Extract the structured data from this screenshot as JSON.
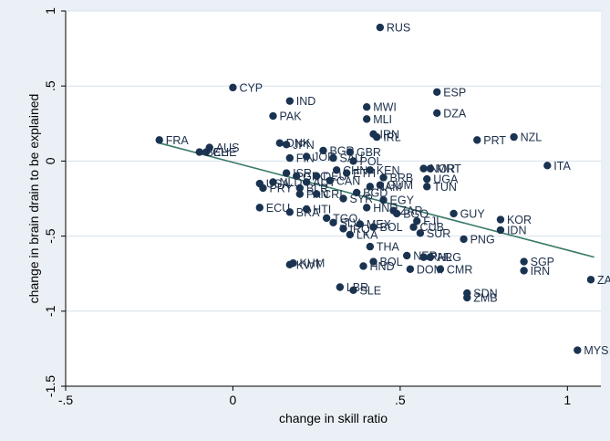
{
  "chart_data": {
    "type": "scatter",
    "xlabel": "change in skill ratio",
    "ylabel": "change in brain drain to be explained",
    "xlim": [
      -0.5,
      1.1
    ],
    "ylim": [
      -1.5,
      1.0
    ],
    "xticks": [
      -0.5,
      0,
      0.5,
      1
    ],
    "xtick_labels": [
      "-.5",
      "0",
      ".5",
      "1"
    ],
    "yticks": [
      1,
      0.5,
      0,
      -0.5,
      -1,
      -1.5
    ],
    "ytick_labels": [
      "1",
      ".5",
      "0",
      "-.5",
      "-1",
      "-1.5"
    ],
    "grid": true,
    "legend": "none",
    "colors": {
      "point": "#1a3350",
      "fit_line": "#3a7a6a",
      "grid": "#d6e0ea",
      "plot_bg": "#ffffff",
      "outer_bg": "#eaf0f5"
    },
    "fit_line": {
      "x": [
        -0.22,
        1.08
      ],
      "y": [
        0.12,
        -0.64
      ]
    },
    "points": [
      {
        "label": "RUS",
        "x": 0.44,
        "y": 0.89
      },
      {
        "label": "CYP",
        "x": 0.0,
        "y": 0.49
      },
      {
        "label": "ESP",
        "x": 0.61,
        "y": 0.46
      },
      {
        "label": "IND",
        "x": 0.17,
        "y": 0.4
      },
      {
        "label": "MWI",
        "x": 0.4,
        "y": 0.36
      },
      {
        "label": "DZA",
        "x": 0.61,
        "y": 0.32
      },
      {
        "label": "PAK",
        "x": 0.12,
        "y": 0.3
      },
      {
        "label": "MLI",
        "x": 0.4,
        "y": 0.28
      },
      {
        "label": "IRN",
        "x": 0.42,
        "y": 0.18
      },
      {
        "label": "IRL",
        "x": 0.43,
        "y": 0.16
      },
      {
        "label": "PRT",
        "x": 0.73,
        "y": 0.14
      },
      {
        "label": "NZL",
        "x": 0.84,
        "y": 0.16
      },
      {
        "label": "FRA",
        "x": -0.22,
        "y": 0.14
      },
      {
        "label": "DNK",
        "x": 0.14,
        "y": 0.12
      },
      {
        "label": "JPN",
        "x": 0.16,
        "y": 0.11
      },
      {
        "label": "AUS",
        "x": -0.07,
        "y": 0.09
      },
      {
        "label": "CHE",
        "x": -0.08,
        "y": 0.06
      },
      {
        "label": "BEL",
        "x": -0.1,
        "y": 0.06
      },
      {
        "label": "BGR",
        "x": 0.27,
        "y": 0.07
      },
      {
        "label": "GBR",
        "x": 0.35,
        "y": 0.06
      },
      {
        "label": "FIN",
        "x": 0.17,
        "y": 0.02
      },
      {
        "label": "JOR",
        "x": 0.22,
        "y": 0.03
      },
      {
        "label": "SAU",
        "x": 0.3,
        "y": 0.02
      },
      {
        "label": "POL",
        "x": 0.36,
        "y": 0.0
      },
      {
        "label": "ITA",
        "x": 0.94,
        "y": -0.03
      },
      {
        "label": "MRT",
        "x": 0.59,
        "y": -0.05
      },
      {
        "label": "NOR",
        "x": 0.57,
        "y": -0.05
      },
      {
        "label": "CHN",
        "x": 0.31,
        "y": -0.06
      },
      {
        "label": "KEN",
        "x": 0.41,
        "y": -0.06
      },
      {
        "label": "ISR",
        "x": 0.16,
        "y": -0.08
      },
      {
        "label": "ETH",
        "x": 0.34,
        "y": -0.08
      },
      {
        "label": "GRC",
        "x": 0.19,
        "y": -0.1
      },
      {
        "label": "DEU",
        "x": 0.25,
        "y": -0.1
      },
      {
        "label": "BRB",
        "x": 0.45,
        "y": -0.11
      },
      {
        "label": "UGA",
        "x": 0.58,
        "y": -0.12
      },
      {
        "label": "NLD",
        "x": 0.12,
        "y": -0.14
      },
      {
        "label": "AUT",
        "x": 0.22,
        "y": -0.14
      },
      {
        "label": "CAN",
        "x": 0.29,
        "y": -0.13
      },
      {
        "label": "GUM",
        "x": 0.44,
        "y": -0.16
      },
      {
        "label": "TUN",
        "x": 0.58,
        "y": -0.17
      },
      {
        "label": "USA",
        "x": 0.08,
        "y": -0.15
      },
      {
        "label": "PRY",
        "x": 0.09,
        "y": -0.18
      },
      {
        "label": "BLR",
        "x": 0.2,
        "y": -0.18
      },
      {
        "label": "NAM",
        "x": 0.41,
        "y": -0.17
      },
      {
        "label": "PAN",
        "x": 0.2,
        "y": -0.22
      },
      {
        "label": "CRI",
        "x": 0.25,
        "y": -0.22
      },
      {
        "label": "BGD",
        "x": 0.37,
        "y": -0.21
      },
      {
        "label": "SYR",
        "x": 0.33,
        "y": -0.25
      },
      {
        "label": "EGY",
        "x": 0.45,
        "y": -0.26
      },
      {
        "label": "ECU",
        "x": 0.08,
        "y": -0.31
      },
      {
        "label": "HTI",
        "x": 0.22,
        "y": -0.32
      },
      {
        "label": "BRA",
        "x": 0.17,
        "y": -0.34
      },
      {
        "label": "HND",
        "x": 0.4,
        "y": -0.31
      },
      {
        "label": "ZAR",
        "x": 0.48,
        "y": -0.33
      },
      {
        "label": "BGO",
        "x": 0.49,
        "y": -0.35
      },
      {
        "label": "GUY",
        "x": 0.66,
        "y": -0.35
      },
      {
        "label": "KOR",
        "x": 0.8,
        "y": -0.39
      },
      {
        "label": "TGO",
        "x": 0.28,
        "y": -0.38
      },
      {
        "label": "SLV",
        "x": 0.3,
        "y": -0.41
      },
      {
        "label": "FJI",
        "x": 0.55,
        "y": -0.4
      },
      {
        "label": "IRQ",
        "x": 0.33,
        "y": -0.45
      },
      {
        "label": "MEX",
        "x": 0.38,
        "y": -0.42
      },
      {
        "label": "BOL",
        "x": 0.42,
        "y": -0.44
      },
      {
        "label": "CUB",
        "x": 0.54,
        "y": -0.44
      },
      {
        "label": "IDN",
        "x": 0.8,
        "y": -0.46
      },
      {
        "label": "SUR",
        "x": 0.56,
        "y": -0.48
      },
      {
        "label": "LKA",
        "x": 0.35,
        "y": -0.49
      },
      {
        "label": "PNG",
        "x": 0.69,
        "y": -0.52
      },
      {
        "label": "THA",
        "x": 0.41,
        "y": -0.57
      },
      {
        "label": "NER",
        "x": 0.52,
        "y": -0.63
      },
      {
        "label": "PHL",
        "x": 0.57,
        "y": -0.64
      },
      {
        "label": "ARG",
        "x": 0.59,
        "y": -0.64
      },
      {
        "label": "SGP",
        "x": 0.87,
        "y": -0.67
      },
      {
        "label": "KHM",
        "x": 0.18,
        "y": -0.68
      },
      {
        "label": "KWT",
        "x": 0.17,
        "y": -0.69
      },
      {
        "label": "BOL",
        "x": 0.42,
        "y": -0.67
      },
      {
        "label": "HND",
        "x": 0.39,
        "y": -0.7
      },
      {
        "label": "DOM",
        "x": 0.53,
        "y": -0.72
      },
      {
        "label": "CMR",
        "x": 0.62,
        "y": -0.72
      },
      {
        "label": "IRN",
        "x": 0.87,
        "y": -0.73
      },
      {
        "label": "ZAF",
        "x": 1.07,
        "y": -0.79
      },
      {
        "label": "LBR",
        "x": 0.32,
        "y": -0.84
      },
      {
        "label": "SLE",
        "x": 0.36,
        "y": -0.86
      },
      {
        "label": "SDN",
        "x": 0.7,
        "y": -0.88
      },
      {
        "label": "ZMB",
        "x": 0.7,
        "y": -0.91
      },
      {
        "label": "MYS",
        "x": 1.03,
        "y": -1.26
      }
    ]
  }
}
